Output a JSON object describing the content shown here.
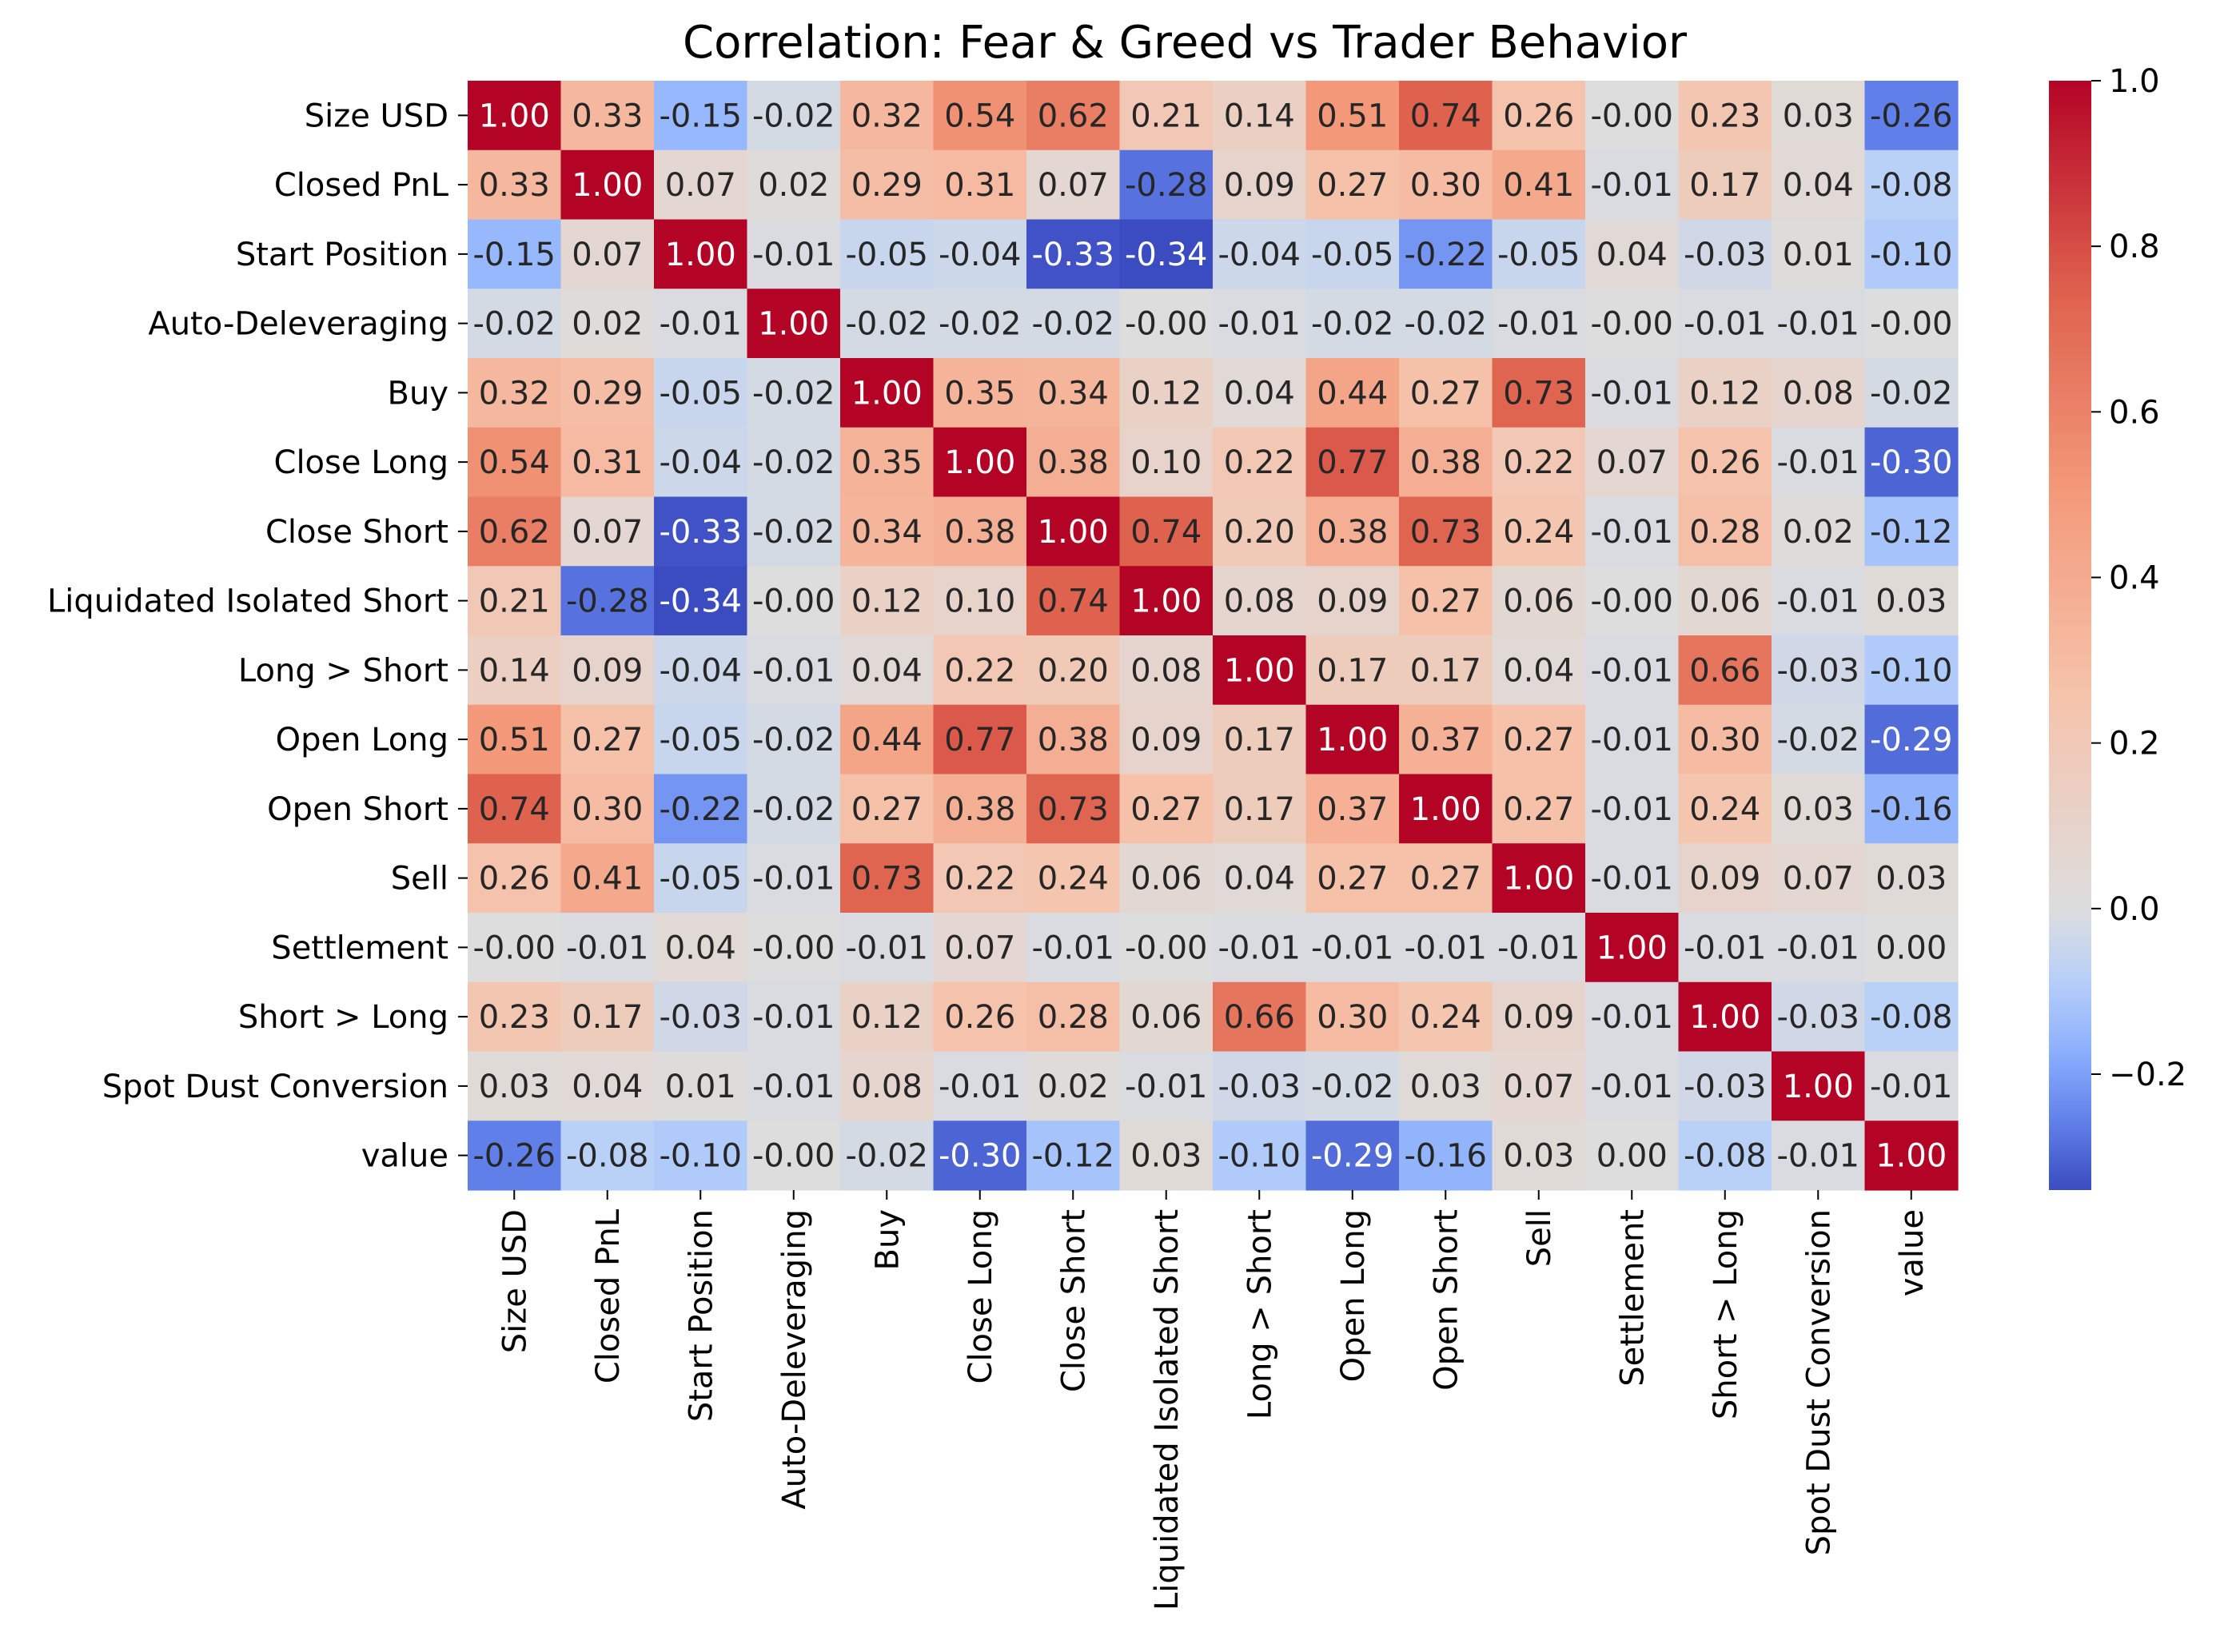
{
  "chart_data": {
    "type": "heatmap",
    "title": "Correlation: Fear & Greed vs Trader Behavior",
    "labels": [
      "Size USD",
      "Closed PnL",
      "Start Position",
      "Auto-Deleveraging",
      "Buy",
      "Close Long",
      "Close Short",
      "Liquidated Isolated Short",
      "Long > Short",
      "Open Long",
      "Open Short",
      "Sell",
      "Settlement",
      "Short > Long",
      "Spot Dust Conversion",
      "value"
    ],
    "cell_labels": [
      [
        "1.00",
        "0.33",
        "-0.15",
        "-0.02",
        "0.32",
        "0.54",
        "0.62",
        "0.21",
        "0.14",
        "0.51",
        "0.74",
        "0.26",
        "-0.00",
        "0.23",
        "0.03",
        "-0.26"
      ],
      [
        "0.33",
        "1.00",
        "0.07",
        "0.02",
        "0.29",
        "0.31",
        "0.07",
        "-0.28",
        "0.09",
        "0.27",
        "0.30",
        "0.41",
        "-0.01",
        "0.17",
        "0.04",
        "-0.08"
      ],
      [
        "-0.15",
        "0.07",
        "1.00",
        "-0.01",
        "-0.05",
        "-0.04",
        "-0.33",
        "-0.34",
        "-0.04",
        "-0.05",
        "-0.22",
        "-0.05",
        "0.04",
        "-0.03",
        "0.01",
        "-0.10"
      ],
      [
        "-0.02",
        "0.02",
        "-0.01",
        "1.00",
        "-0.02",
        "-0.02",
        "-0.02",
        "-0.00",
        "-0.01",
        "-0.02",
        "-0.02",
        "-0.01",
        "-0.00",
        "-0.01",
        "-0.01",
        "-0.00"
      ],
      [
        "0.32",
        "0.29",
        "-0.05",
        "-0.02",
        "1.00",
        "0.35",
        "0.34",
        "0.12",
        "0.04",
        "0.44",
        "0.27",
        "0.73",
        "-0.01",
        "0.12",
        "0.08",
        "-0.02"
      ],
      [
        "0.54",
        "0.31",
        "-0.04",
        "-0.02",
        "0.35",
        "1.00",
        "0.38",
        "0.10",
        "0.22",
        "0.77",
        "0.38",
        "0.22",
        "0.07",
        "0.26",
        "-0.01",
        "-0.30"
      ],
      [
        "0.62",
        "0.07",
        "-0.33",
        "-0.02",
        "0.34",
        "0.38",
        "1.00",
        "0.74",
        "0.20",
        "0.38",
        "0.73",
        "0.24",
        "-0.01",
        "0.28",
        "0.02",
        "-0.12"
      ],
      [
        "0.21",
        "-0.28",
        "-0.34",
        "-0.00",
        "0.12",
        "0.10",
        "0.74",
        "1.00",
        "0.08",
        "0.09",
        "0.27",
        "0.06",
        "-0.00",
        "0.06",
        "-0.01",
        "0.03"
      ],
      [
        "0.14",
        "0.09",
        "-0.04",
        "-0.01",
        "0.04",
        "0.22",
        "0.20",
        "0.08",
        "1.00",
        "0.17",
        "0.17",
        "0.04",
        "-0.01",
        "0.66",
        "-0.03",
        "-0.10"
      ],
      [
        "0.51",
        "0.27",
        "-0.05",
        "-0.02",
        "0.44",
        "0.77",
        "0.38",
        "0.09",
        "0.17",
        "1.00",
        "0.37",
        "0.27",
        "-0.01",
        "0.30",
        "-0.02",
        "-0.29"
      ],
      [
        "0.74",
        "0.30",
        "-0.22",
        "-0.02",
        "0.27",
        "0.38",
        "0.73",
        "0.27",
        "0.17",
        "0.37",
        "1.00",
        "0.27",
        "-0.01",
        "0.24",
        "0.03",
        "-0.16"
      ],
      [
        "0.26",
        "0.41",
        "-0.05",
        "-0.01",
        "0.73",
        "0.22",
        "0.24",
        "0.06",
        "0.04",
        "0.27",
        "0.27",
        "1.00",
        "-0.01",
        "0.09",
        "0.07",
        "0.03"
      ],
      [
        "-0.00",
        "-0.01",
        "0.04",
        "-0.00",
        "-0.01",
        "0.07",
        "-0.01",
        "-0.00",
        "-0.01",
        "-0.01",
        "-0.01",
        "-0.01",
        "1.00",
        "-0.01",
        "-0.01",
        "0.00"
      ],
      [
        "0.23",
        "0.17",
        "-0.03",
        "-0.01",
        "0.12",
        "0.26",
        "0.28",
        "0.06",
        "0.66",
        "0.30",
        "0.24",
        "0.09",
        "-0.01",
        "1.00",
        "-0.03",
        "-0.08"
      ],
      [
        "0.03",
        "0.04",
        "0.01",
        "-0.01",
        "0.08",
        "-0.01",
        "0.02",
        "-0.01",
        "-0.03",
        "-0.02",
        "0.03",
        "0.07",
        "-0.01",
        "-0.03",
        "1.00",
        "-0.01"
      ],
      [
        "-0.26",
        "-0.08",
        "-0.10",
        "-0.00",
        "-0.02",
        "-0.30",
        "-0.12",
        "0.03",
        "-0.10",
        "-0.29",
        "-0.16",
        "0.03",
        "0.00",
        "-0.08",
        "-0.01",
        "1.00"
      ]
    ],
    "colorbar": {
      "colormap": "coolwarm",
      "vmin": -0.34,
      "vmax": 1.0,
      "center": 0,
      "ticks": [
        "1.0",
        "0.8",
        "0.6",
        "0.4",
        "0.2",
        "0.0",
        "−0.2"
      ],
      "tick_values": [
        1.0,
        0.8,
        0.6,
        0.4,
        0.2,
        0.0,
        -0.2
      ]
    },
    "colors": {
      "cool_end": "#3b4cc0",
      "neutral": "#dddddd",
      "warm_end": "#b40426"
    }
  }
}
